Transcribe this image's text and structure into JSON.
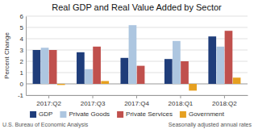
{
  "chart_data": {
    "type": "bar",
    "title": "Real GDP and Real Value Added by Sector",
    "y_label": "Percent Change",
    "categories": [
      "2017:Q2",
      "2017:Q3",
      "2017:Q4",
      "2018:Q1",
      "2018:Q2"
    ],
    "series": [
      {
        "name": "GDP",
        "color": "#1f3d7a",
        "values": [
          3.0,
          2.8,
          2.3,
          2.2,
          4.2
        ]
      },
      {
        "name": "Private Goods",
        "color": "#adc6e0",
        "values": [
          3.2,
          1.3,
          5.2,
          3.8,
          3.3
        ]
      },
      {
        "name": "Private Services",
        "color": "#c0504d",
        "values": [
          3.0,
          3.3,
          1.6,
          2.0,
          4.7
        ]
      },
      {
        "name": "Government",
        "color": "#e6a020",
        "values": [
          -0.1,
          0.25,
          0.0,
          -0.6,
          0.55
        ]
      }
    ],
    "ylim": [
      -1,
      6
    ],
    "yticks": [
      -1,
      0,
      1,
      2,
      3,
      4,
      5,
      6
    ],
    "grid": true,
    "legend": "bottom",
    "annotations": [
      "U.S. Bureau of Economic Analysis",
      "Seasonally adjusted annual rates"
    ]
  }
}
